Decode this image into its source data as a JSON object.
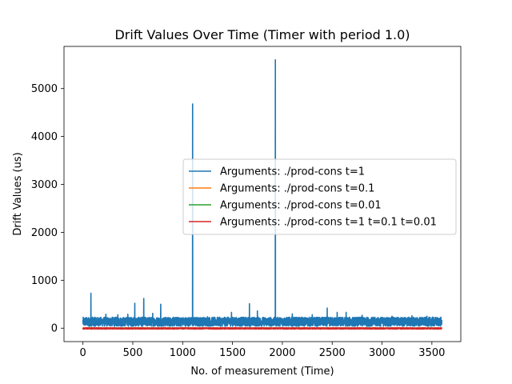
{
  "chart_data": {
    "type": "line",
    "title": "Drift Values Over Time (Timer with period 1.0)",
    "xlabel": "No. of measurement (Time)",
    "ylabel": "Drift Values (us)",
    "xlim": [
      -190,
      3790
    ],
    "ylim": [
      -280,
      5880
    ],
    "xticks": [
      0,
      500,
      1000,
      1500,
      2000,
      2500,
      3000,
      3500
    ],
    "yticks": [
      0,
      1000,
      2000,
      3000,
      4000,
      5000
    ],
    "legend_position": "center-right",
    "series": [
      {
        "name": "Arguments: ./prod-cons t=1",
        "color": "#1f77b4",
        "n_points": 3600,
        "baseline_range": [
          40,
          230
        ],
        "spikes": [
          {
            "x": 80,
            "y": 730
          },
          {
            "x": 230,
            "y": 290
          },
          {
            "x": 350,
            "y": 280
          },
          {
            "x": 450,
            "y": 290
          },
          {
            "x": 520,
            "y": 520
          },
          {
            "x": 610,
            "y": 620
          },
          {
            "x": 700,
            "y": 310
          },
          {
            "x": 780,
            "y": 500
          },
          {
            "x": 1100,
            "y": 4680
          },
          {
            "x": 1250,
            "y": 240
          },
          {
            "x": 1490,
            "y": 330
          },
          {
            "x": 1670,
            "y": 510
          },
          {
            "x": 1750,
            "y": 360
          },
          {
            "x": 1930,
            "y": 5600
          },
          {
            "x": 2100,
            "y": 300
          },
          {
            "x": 2300,
            "y": 280
          },
          {
            "x": 2450,
            "y": 420
          },
          {
            "x": 2550,
            "y": 330
          },
          {
            "x": 2640,
            "y": 330
          },
          {
            "x": 2800,
            "y": 270
          },
          {
            "x": 3100,
            "y": 250
          },
          {
            "x": 3300,
            "y": 260
          },
          {
            "x": 3450,
            "y": 250
          }
        ]
      },
      {
        "name": "Arguments: ./prod-cons t=0.1",
        "color": "#ff7f0e",
        "n_points": 3600,
        "baseline_range": [
          -5,
          5
        ],
        "spikes": []
      },
      {
        "name": "Arguments: ./prod-cons t=0.01",
        "color": "#2ca02c",
        "n_points": 3600,
        "baseline_range": [
          -5,
          5
        ],
        "spikes": []
      },
      {
        "name": "Arguments: ./prod-cons t=1 t=0.1 t=0.01",
        "color": "#d62728",
        "n_points": 3600,
        "baseline_range": [
          -20,
          10
        ],
        "spikes": []
      }
    ]
  }
}
